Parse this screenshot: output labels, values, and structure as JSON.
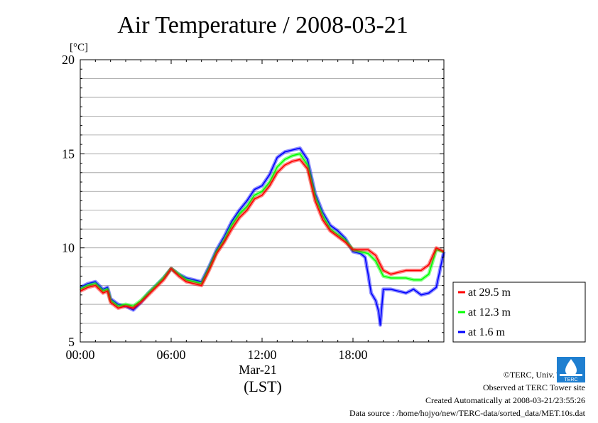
{
  "chart_data": {
    "type": "line",
    "title": "Air Temperature / 2008-03-21",
    "ylabel": "[°C]",
    "ylim": [
      5,
      20
    ],
    "yticks": [
      "5",
      "10",
      "15",
      "20"
    ],
    "xlim": [
      0,
      24
    ],
    "xticks": [
      "00:00",
      "06:00",
      "12:00",
      "18:00"
    ],
    "xsublabel": "Mar-21",
    "xunit": "(LST)",
    "grid": true,
    "legend_position": "right",
    "series": [
      {
        "name": "at 29.5 m",
        "color": "#ff0000",
        "x": [
          0,
          0.5,
          1,
          1.5,
          1.8,
          2.0,
          2.5,
          3,
          3.5,
          4,
          4.5,
          5,
          5.5,
          6,
          6.5,
          7,
          7.5,
          8,
          8.5,
          9,
          9.5,
          10,
          10.5,
          11,
          11.5,
          12,
          12.5,
          13,
          13.5,
          14,
          14.5,
          15,
          15.5,
          16,
          16.5,
          17,
          17.5,
          18,
          18.5,
          19,
          19.5,
          20,
          20.5,
          21,
          21.5,
          22,
          22.5,
          23,
          23.5,
          24
        ],
        "values": [
          7.7,
          7.9,
          8.0,
          7.6,
          7.7,
          7.1,
          6.8,
          6.9,
          6.8,
          7.1,
          7.5,
          7.9,
          8.3,
          8.9,
          8.5,
          8.2,
          8.1,
          8.0,
          8.8,
          9.7,
          10.3,
          11.0,
          11.6,
          12.0,
          12.6,
          12.8,
          13.3,
          14.0,
          14.4,
          14.6,
          14.7,
          14.2,
          12.5,
          11.5,
          10.9,
          10.6,
          10.3,
          9.9,
          9.9,
          9.9,
          9.6,
          8.8,
          8.6,
          8.7,
          8.8,
          8.8,
          8.8,
          9.1,
          10.0,
          9.8
        ]
      },
      {
        "name": "at 12.3 m",
        "color": "#00ff00",
        "x": [
          0,
          0.5,
          1,
          1.5,
          1.8,
          2.0,
          2.5,
          3,
          3.5,
          4,
          4.5,
          5,
          5.5,
          6,
          6.5,
          7,
          7.5,
          8,
          8.5,
          9,
          9.5,
          10,
          10.5,
          11,
          11.5,
          12,
          12.5,
          13,
          13.5,
          14,
          14.5,
          15,
          15.5,
          16,
          16.5,
          17,
          17.5,
          18,
          18.5,
          19,
          19.5,
          20,
          20.5,
          21,
          21.5,
          22,
          22.5,
          23,
          23.5,
          24
        ],
        "values": [
          7.8,
          8.0,
          8.1,
          7.7,
          7.8,
          7.2,
          6.9,
          7.0,
          6.9,
          7.2,
          7.6,
          8.0,
          8.4,
          8.9,
          8.6,
          8.3,
          8.2,
          8.1,
          8.9,
          9.8,
          10.4,
          11.2,
          11.8,
          12.2,
          12.8,
          13.0,
          13.5,
          14.3,
          14.7,
          14.9,
          15.0,
          14.4,
          12.7,
          11.7,
          11.0,
          10.7,
          10.4,
          9.9,
          9.8,
          9.7,
          9.3,
          8.5,
          8.4,
          8.4,
          8.4,
          8.3,
          8.3,
          8.6,
          9.9,
          9.8
        ]
      },
      {
        "name": "at 1.6 m",
        "color": "#0000ff",
        "x": [
          0,
          0.5,
          1,
          1.5,
          1.8,
          2.0,
          2.5,
          3,
          3.5,
          4,
          4.5,
          5,
          5.5,
          6,
          6.5,
          7,
          7.5,
          8,
          8.5,
          9,
          9.5,
          10,
          10.5,
          11,
          11.5,
          12,
          12.5,
          13,
          13.5,
          14,
          14.5,
          15,
          15.5,
          16,
          16.5,
          17,
          17.5,
          18,
          18.5,
          18.8,
          19.0,
          19.2,
          19.5,
          19.7,
          19.8,
          20,
          20.5,
          21,
          21.5,
          22,
          22.5,
          23,
          23.5,
          24
        ],
        "values": [
          7.9,
          8.1,
          8.2,
          7.8,
          7.9,
          7.3,
          7.0,
          6.9,
          6.7,
          7.1,
          7.6,
          8.0,
          8.4,
          8.9,
          8.6,
          8.4,
          8.3,
          8.2,
          9.0,
          9.9,
          10.6,
          11.4,
          12.0,
          12.5,
          13.1,
          13.3,
          13.9,
          14.8,
          15.1,
          15.2,
          15.3,
          14.7,
          12.9,
          11.9,
          11.2,
          10.9,
          10.5,
          9.8,
          9.7,
          9.5,
          8.6,
          7.6,
          7.2,
          6.6,
          5.9,
          7.8,
          7.8,
          7.7,
          7.6,
          7.8,
          7.5,
          7.6,
          7.9,
          9.8
        ]
      }
    ]
  },
  "credits": {
    "copyright": "©TERC, Univ. Tsukuba",
    "site": "Observed at TERC Tower site",
    "created": "Created Automatically at 2008-03-21/23:55:26",
    "source": "Data source : /home/hojyo/new/TERC-data/sorted_data/MET.10s.dat",
    "logo_text": "TERC"
  }
}
